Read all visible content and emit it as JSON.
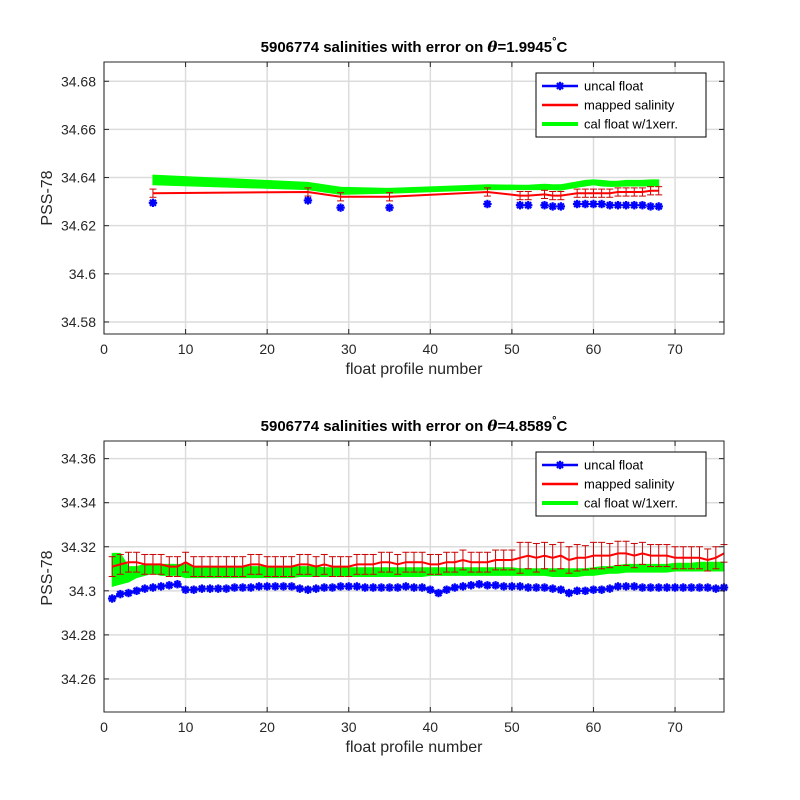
{
  "chart_data": [
    {
      "type": "line",
      "title_prefix": "5906774 salinities with error on ",
      "title_theta": "θ",
      "title_value": "=1.9945",
      "title_degree": "°",
      "title_unit": "C",
      "xlabel": "float profile number",
      "ylabel": "PSS-78",
      "xlim": [
        0,
        76
      ],
      "ylim": [
        34.575,
        34.688
      ],
      "xticks": [
        0,
        10,
        20,
        30,
        40,
        50,
        60,
        70
      ],
      "yticks": [
        34.58,
        34.6,
        34.62,
        34.64,
        34.66,
        34.68
      ],
      "ytick_labels": [
        "34.58",
        "34.6",
        "34.62",
        "34.64",
        "34.66",
        "34.68"
      ],
      "grid": true,
      "legend_position": "top-right",
      "legend": [
        "uncal float",
        "mapped salinity",
        "cal float w/1xerr."
      ],
      "colors": {
        "uncal": "#0000ff",
        "mapped": "#ff0000",
        "cal": "#00ff00",
        "errorbar": "#cc0000"
      },
      "series": [
        {
          "name": "uncal float",
          "x": [
            6,
            25,
            29,
            35,
            47,
            51,
            52,
            54,
            55,
            56,
            58,
            59,
            60,
            61,
            62,
            63,
            64,
            65,
            66,
            67,
            68
          ],
          "values": [
            34.6295,
            34.6305,
            34.6275,
            34.6275,
            34.629,
            34.6285,
            34.6285,
            34.6285,
            34.628,
            34.628,
            34.629,
            34.629,
            34.629,
            34.629,
            34.6285,
            34.6285,
            34.6285,
            34.6285,
            34.6285,
            34.628,
            34.628
          ]
        },
        {
          "name": "mapped salinity",
          "x": [
            6,
            25,
            29,
            35,
            47,
            51,
            52,
            54,
            55,
            56,
            58,
            59,
            60,
            61,
            62,
            63,
            64,
            65,
            66,
            67,
            68
          ],
          "values": [
            34.6335,
            34.634,
            34.632,
            34.632,
            34.634,
            34.6325,
            34.6325,
            34.633,
            34.6325,
            34.6325,
            34.6335,
            34.6335,
            34.6335,
            34.6335,
            34.6335,
            34.634,
            34.634,
            34.634,
            34.634,
            34.6345,
            34.6345
          ],
          "error": [
            0.0017,
            0.0017,
            0.0017,
            0.0017,
            0.0017,
            0.0017,
            0.0017,
            0.0017,
            0.0017,
            0.0017,
            0.0017,
            0.0017,
            0.0017,
            0.0017,
            0.0017,
            0.0017,
            0.0017,
            0.0017,
            0.0017,
            0.0017,
            0.0017
          ]
        },
        {
          "name": "cal float w/1xerr.",
          "x": [
            6,
            25,
            29,
            35,
            47,
            51,
            52,
            54,
            55,
            56,
            58,
            59,
            60,
            61,
            62,
            63,
            64,
            65,
            66,
            67,
            68
          ],
          "upper": [
            34.641,
            34.638,
            34.636,
            34.6355,
            34.637,
            34.6368,
            34.6368,
            34.6372,
            34.637,
            34.637,
            34.6382,
            34.6388,
            34.639,
            34.6388,
            34.6385,
            34.6385,
            34.6388,
            34.6388,
            34.6388,
            34.639,
            34.639
          ],
          "lower": [
            34.637,
            34.635,
            34.633,
            34.6335,
            34.635,
            34.635,
            34.635,
            34.635,
            34.635,
            34.6348,
            34.636,
            34.6365,
            34.637,
            34.6365,
            34.6363,
            34.6363,
            34.6365,
            34.6365,
            34.6365,
            34.6365,
            34.6365
          ]
        }
      ]
    },
    {
      "type": "line",
      "title_prefix": "5906774 salinities with error on ",
      "title_theta": "θ",
      "title_value": "=4.8589",
      "title_degree": "°",
      "title_unit": "C",
      "xlabel": "float profile number",
      "ylabel": "PSS-78",
      "xlim": [
        0,
        76
      ],
      "ylim": [
        34.245,
        34.368
      ],
      "xticks": [
        0,
        10,
        20,
        30,
        40,
        50,
        60,
        70
      ],
      "yticks": [
        34.26,
        34.28,
        34.3,
        34.32,
        34.34,
        34.36
      ],
      "ytick_labels": [
        "34.26",
        "34.28",
        "34.3",
        "34.32",
        "34.34",
        "34.36"
      ],
      "grid": true,
      "legend_position": "top-right",
      "legend": [
        "uncal float",
        "mapped salinity",
        "cal float w/1xerr."
      ],
      "colors": {
        "uncal": "#0000ff",
        "mapped": "#ff0000",
        "cal": "#00ff00",
        "errorbar": "#cc0000"
      },
      "series": [
        {
          "name": "uncal float",
          "x": [
            1,
            2,
            3,
            4,
            5,
            6,
            7,
            8,
            9,
            10,
            11,
            12,
            13,
            14,
            15,
            16,
            17,
            18,
            19,
            20,
            21,
            22,
            23,
            24,
            25,
            26,
            27,
            28,
            29,
            30,
            31,
            32,
            33,
            34,
            35,
            36,
            37,
            38,
            39,
            40,
            41,
            42,
            43,
            44,
            45,
            46,
            47,
            48,
            49,
            50,
            51,
            52,
            53,
            54,
            55,
            56,
            57,
            58,
            59,
            60,
            61,
            62,
            63,
            64,
            65,
            66,
            67,
            68,
            69,
            70,
            71,
            72,
            73,
            74,
            75,
            76
          ],
          "values": [
            34.2965,
            34.2985,
            34.299,
            34.3,
            34.301,
            34.3015,
            34.302,
            34.3025,
            34.303,
            34.3005,
            34.3005,
            34.301,
            34.301,
            34.301,
            34.301,
            34.3015,
            34.3015,
            34.3015,
            34.302,
            34.302,
            34.302,
            34.302,
            34.302,
            34.301,
            34.3005,
            34.301,
            34.3015,
            34.3015,
            34.302,
            34.302,
            34.302,
            34.3015,
            34.3015,
            34.3015,
            34.3015,
            34.3015,
            34.302,
            34.3015,
            34.3015,
            34.3005,
            34.299,
            34.3005,
            34.3015,
            34.302,
            34.3025,
            34.303,
            34.3025,
            34.3025,
            34.302,
            34.302,
            34.302,
            34.3015,
            34.3015,
            34.3015,
            34.301,
            34.3005,
            34.299,
            34.3,
            34.3,
            34.3005,
            34.3005,
            34.301,
            34.302,
            34.302,
            34.302,
            34.3015,
            34.3015,
            34.3015,
            34.3015,
            34.3015,
            34.3015,
            34.3015,
            34.3015,
            34.3015,
            34.301,
            34.3015
          ]
        },
        {
          "name": "mapped salinity",
          "x": [
            1,
            2,
            3,
            4,
            5,
            6,
            7,
            8,
            9,
            10,
            11,
            12,
            13,
            14,
            15,
            16,
            17,
            18,
            19,
            20,
            21,
            22,
            23,
            24,
            25,
            26,
            27,
            28,
            29,
            30,
            31,
            32,
            33,
            34,
            35,
            36,
            37,
            38,
            39,
            40,
            41,
            42,
            43,
            44,
            45,
            46,
            47,
            48,
            49,
            50,
            51,
            52,
            53,
            54,
            55,
            56,
            57,
            58,
            59,
            60,
            61,
            62,
            63,
            64,
            65,
            66,
            67,
            68,
            69,
            70,
            71,
            72,
            73,
            74,
            75,
            76
          ],
          "values": [
            34.311,
            34.312,
            34.313,
            34.313,
            34.312,
            34.312,
            34.312,
            34.311,
            34.311,
            34.313,
            34.311,
            34.311,
            34.311,
            34.311,
            34.311,
            34.311,
            34.311,
            34.312,
            34.312,
            34.311,
            34.311,
            34.311,
            34.311,
            34.312,
            34.312,
            34.311,
            34.312,
            34.311,
            34.311,
            34.311,
            34.312,
            34.312,
            34.312,
            34.313,
            34.313,
            34.312,
            34.313,
            34.313,
            34.313,
            34.312,
            34.312,
            34.313,
            34.313,
            34.314,
            34.313,
            34.313,
            34.313,
            34.314,
            34.314,
            34.314,
            34.315,
            34.316,
            34.315,
            34.316,
            34.315,
            34.316,
            34.314,
            34.315,
            34.315,
            34.316,
            34.316,
            34.316,
            34.317,
            34.317,
            34.316,
            34.317,
            34.316,
            34.316,
            34.316,
            34.315,
            34.315,
            34.315,
            34.315,
            34.314,
            34.315,
            34.317
          ],
          "error": [
            0.0045,
            0.0045,
            0.0045,
            0.0045,
            0.0045,
            0.0045,
            0.0045,
            0.0045,
            0.0045,
            0.0045,
            0.0045,
            0.0045,
            0.0045,
            0.0045,
            0.0045,
            0.0045,
            0.0045,
            0.0045,
            0.0045,
            0.0045,
            0.0045,
            0.0045,
            0.0045,
            0.0045,
            0.0045,
            0.0045,
            0.0045,
            0.0045,
            0.0045,
            0.0045,
            0.0045,
            0.0045,
            0.0045,
            0.0045,
            0.0045,
            0.0045,
            0.0045,
            0.0045,
            0.0045,
            0.0045,
            0.0045,
            0.0045,
            0.0045,
            0.0045,
            0.0045,
            0.0045,
            0.0045,
            0.0045,
            0.0045,
            0.0045,
            0.007,
            0.006,
            0.0065,
            0.006,
            0.006,
            0.006,
            0.006,
            0.006,
            0.0055,
            0.006,
            0.006,
            0.0055,
            0.0055,
            0.0055,
            0.0055,
            0.005,
            0.005,
            0.005,
            0.005,
            0.005,
            0.005,
            0.005,
            0.005,
            0.005,
            0.005,
            0.004
          ]
        },
        {
          "name": "cal float w/1xerr.",
          "x": [
            1,
            2,
            3,
            4,
            5,
            6,
            7,
            8,
            9,
            10,
            11,
            12,
            13,
            14,
            15,
            16,
            17,
            18,
            19,
            20,
            21,
            22,
            23,
            24,
            25,
            26,
            27,
            28,
            29,
            30,
            31,
            32,
            33,
            34,
            35,
            36,
            37,
            38,
            39,
            40,
            41,
            42,
            43,
            44,
            45,
            46,
            47,
            48,
            49,
            50,
            51,
            52,
            53,
            54,
            55,
            56,
            57,
            58,
            59,
            60,
            61,
            62,
            63,
            64,
            65,
            66,
            67,
            68,
            69,
            70,
            71,
            72,
            73,
            74,
            75,
            76
          ],
          "upper": [
            34.317,
            34.317,
            34.311,
            34.311,
            34.312,
            34.312,
            34.312,
            34.312,
            34.312,
            34.312,
            34.311,
            34.311,
            34.311,
            34.311,
            34.311,
            34.311,
            34.311,
            34.311,
            34.311,
            34.311,
            34.311,
            34.311,
            34.311,
            34.311,
            34.311,
            34.311,
            34.3105,
            34.3105,
            34.3105,
            34.3105,
            34.3105,
            34.3105,
            34.3105,
            34.3105,
            34.3105,
            34.3105,
            34.3105,
            34.3105,
            34.3105,
            34.3105,
            34.3105,
            34.3105,
            34.3105,
            34.3105,
            34.3105,
            34.3105,
            34.3105,
            34.3105,
            34.3105,
            34.3105,
            34.31,
            34.31,
            34.31,
            34.31,
            34.31,
            34.31,
            34.31,
            34.31,
            34.31,
            34.3105,
            34.311,
            34.311,
            34.3115,
            34.312,
            34.312,
            34.312,
            34.312,
            34.312,
            34.312,
            34.3125,
            34.3125,
            34.3125,
            34.313,
            34.313,
            34.313,
            34.313
          ],
          "lower": [
            34.302,
            34.303,
            34.304,
            34.306,
            34.307,
            34.308,
            34.307,
            34.307,
            34.307,
            34.306,
            34.306,
            34.306,
            34.306,
            34.306,
            34.306,
            34.306,
            34.306,
            34.306,
            34.306,
            34.306,
            34.306,
            34.306,
            34.306,
            34.3065,
            34.3065,
            34.3065,
            34.3065,
            34.3065,
            34.3065,
            34.3065,
            34.3065,
            34.3065,
            34.3065,
            34.3065,
            34.3065,
            34.3065,
            34.3065,
            34.3065,
            34.3065,
            34.307,
            34.307,
            34.307,
            34.307,
            34.307,
            34.307,
            34.307,
            34.307,
            34.307,
            34.307,
            34.307,
            34.307,
            34.307,
            34.307,
            34.307,
            34.3065,
            34.3065,
            34.3065,
            34.3065,
            34.307,
            34.307,
            34.3075,
            34.308,
            34.308,
            34.3085,
            34.3085,
            34.3085,
            34.3085,
            34.3085,
            34.3085,
            34.309,
            34.309,
            34.309,
            34.309,
            34.309,
            34.309,
            34.309
          ]
        }
      ]
    }
  ]
}
